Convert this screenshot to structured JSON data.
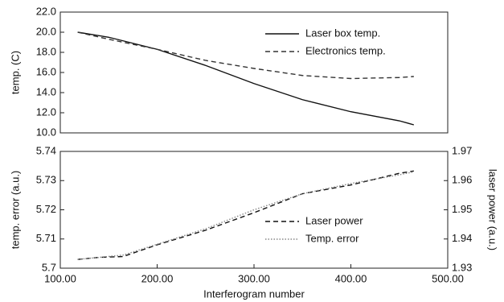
{
  "chart_data": [
    {
      "type": "line",
      "y_label": "temp. (C)",
      "x": [
        118,
        150,
        200,
        250,
        300,
        350,
        400,
        450,
        465
      ],
      "xlim": [
        100,
        500
      ],
      "ylim": [
        10,
        22
      ],
      "yticks": [
        {
          "value": 10,
          "label": "10.0"
        },
        {
          "value": 12,
          "label": "12.0"
        },
        {
          "value": 14,
          "label": "14.0"
        },
        {
          "value": 16,
          "label": "16.0"
        },
        {
          "value": 18,
          "label": "18.0"
        },
        {
          "value": 20,
          "label": "20.0"
        },
        {
          "value": 22,
          "label": "22.0"
        }
      ],
      "legend": "upper right",
      "series": [
        {
          "name": "Laser box temp.",
          "color": "#111111",
          "linestyle": "solid",
          "values": [
            20.0,
            19.5,
            18.3,
            16.7,
            14.9,
            13.3,
            12.1,
            11.2,
            10.8
          ]
        },
        {
          "name": "Electronics temp.",
          "color": "#333333",
          "linestyle": "dashed",
          "values": [
            20.0,
            19.3,
            18.3,
            17.2,
            16.4,
            15.7,
            15.4,
            15.5,
            15.6
          ]
        }
      ]
    },
    {
      "type": "line",
      "x_label": "Interferogram number",
      "y_label": "temp. error (a.u.)",
      "y2_label": "laser power (a.u.)",
      "x": [
        118,
        140,
        165,
        200,
        250,
        300,
        350,
        400,
        450,
        465
      ],
      "xlim": [
        100,
        500
      ],
      "xticks": [
        {
          "value": 100,
          "label": "100.00"
        },
        {
          "value": 200,
          "label": "200.00"
        },
        {
          "value": 300,
          "label": "300.00"
        },
        {
          "value": 400,
          "label": "400.00"
        },
        {
          "value": 500,
          "label": "500.00"
        }
      ],
      "ylim": [
        5.7,
        5.74
      ],
      "yticks": [
        5.7,
        5.71,
        5.72,
        5.73,
        5.74
      ],
      "y2lim": [
        1.93,
        1.97
      ],
      "y2ticks": [
        1.93,
        1.94,
        1.95,
        1.96,
        1.97
      ],
      "legend": "lower right",
      "series": [
        {
          "name": "Laser power",
          "color": "#111111",
          "linestyle": "dashed",
          "axis": "y2",
          "values": [
            1.933,
            1.9337,
            1.934,
            1.938,
            1.943,
            1.949,
            1.9555,
            1.9585,
            1.9625,
            1.9633
          ]
        },
        {
          "name": "Temp. error",
          "color": "#888888",
          "linestyle": "dotted",
          "values": [
            5.703,
            5.7037,
            5.7045,
            5.7082,
            5.7135,
            5.72,
            5.7255,
            5.729,
            5.732,
            5.733
          ]
        }
      ]
    }
  ]
}
